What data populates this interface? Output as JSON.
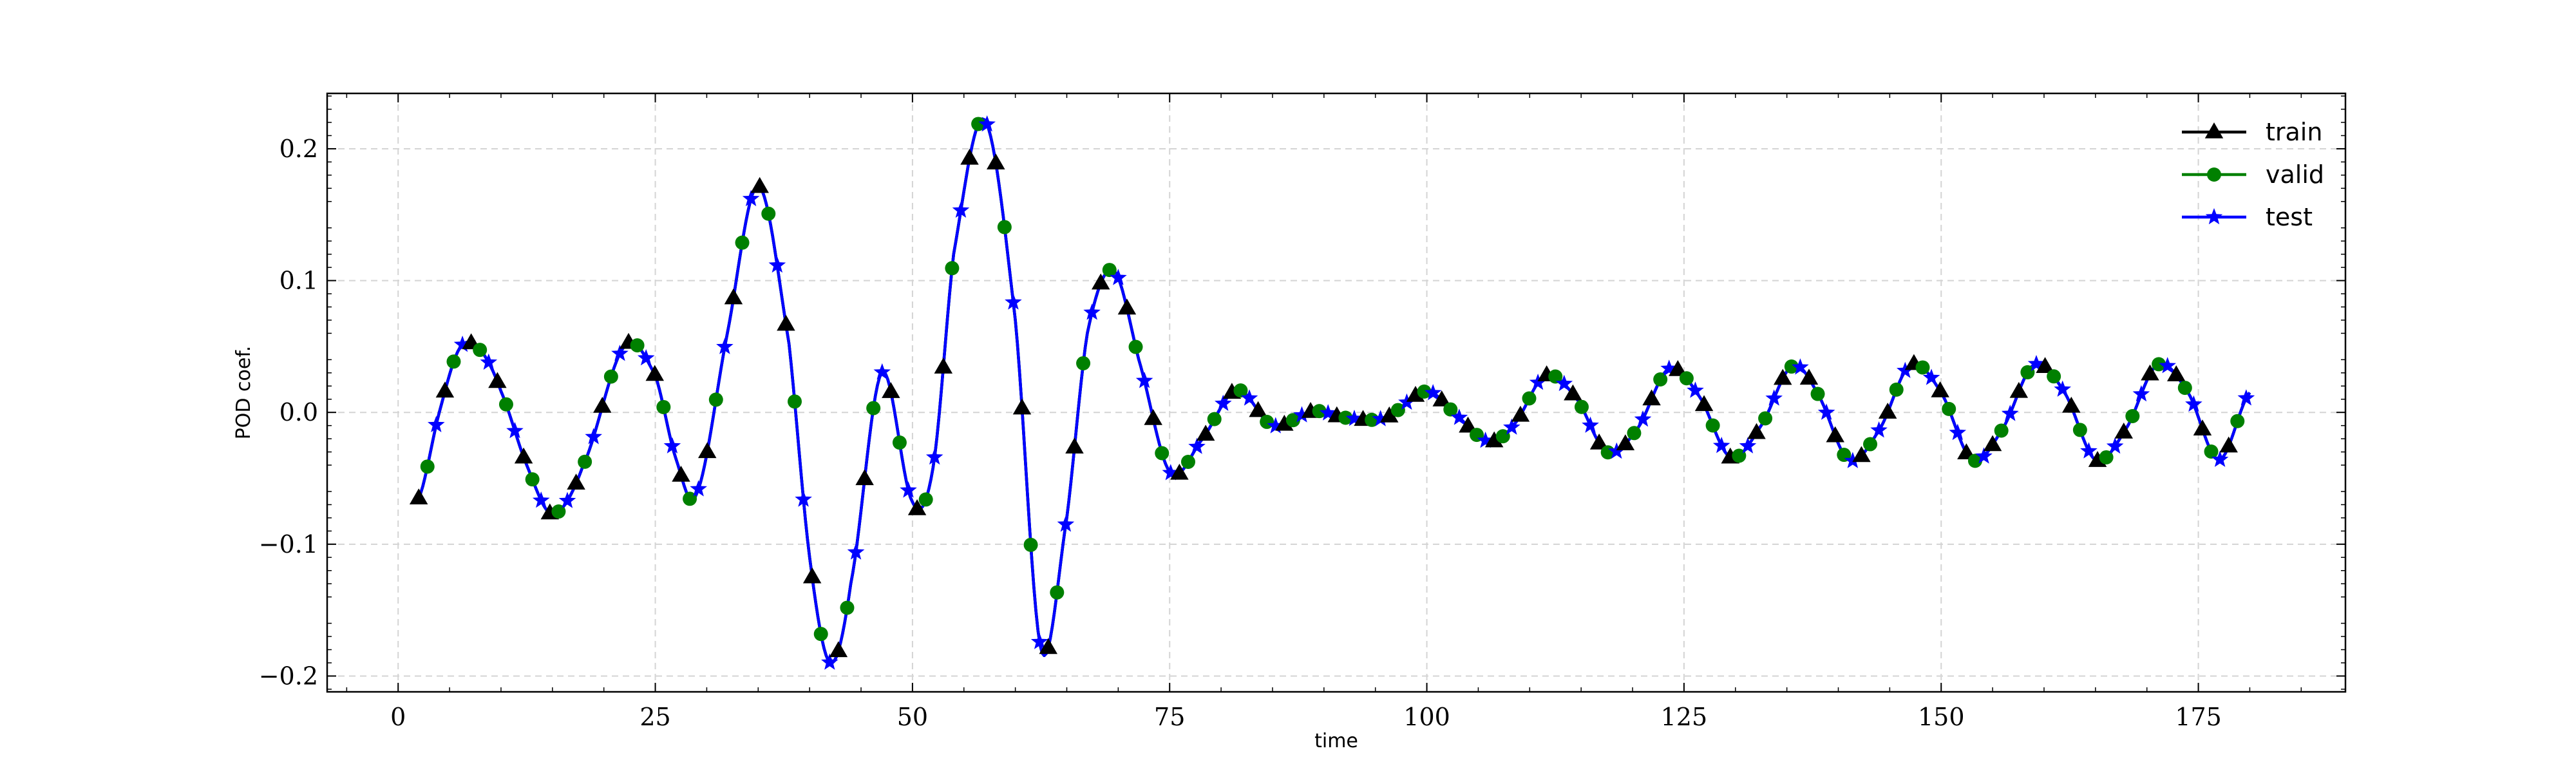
{
  "chart_data": {
    "type": "line",
    "title": "",
    "xlabel": "time",
    "ylabel": "POD coef.",
    "xlim": [
      -6.9,
      189.3
    ],
    "ylim": [
      -0.212,
      0.242
    ],
    "xticks": [
      0,
      25,
      50,
      75,
      100,
      125,
      150,
      175
    ],
    "yticks": [
      -0.2,
      -0.1,
      0.0,
      0.1,
      0.2
    ],
    "xtick_labels": [
      "0",
      "25",
      "50",
      "75",
      "100",
      "125",
      "150",
      "175"
    ],
    "ytick_labels": [
      "−0.2",
      "−0.1",
      "0.0",
      "0.1",
      "0.2"
    ],
    "grid": true,
    "legend_position": "top-right",
    "series": [
      {
        "name": "train",
        "color": "#000000",
        "marker": "triangle"
      },
      {
        "name": "valid",
        "color": "#008000",
        "marker": "circle"
      },
      {
        "name": "test",
        "color": "#0000ff",
        "marker": "star"
      }
    ],
    "curve": {
      "x": [
        2,
        4,
        6,
        8,
        10,
        12.5,
        15,
        18,
        22,
        25,
        27,
        29,
        32,
        35,
        38,
        40,
        42,
        44,
        47,
        50,
        52,
        54,
        57,
        60,
        62.5,
        65,
        67,
        69.5,
        72,
        75,
        78,
        81.5,
        85,
        89,
        92,
        96,
        100,
        103,
        106,
        108.5,
        111.5,
        114.5,
        117.5,
        120.5,
        123.5,
        126.5,
        129.5,
        132.5,
        135.5,
        138,
        141,
        144,
        147,
        150,
        153,
        156,
        159,
        162,
        165,
        168,
        171,
        174,
        177,
        180
      ],
      "y": [
        -0.065,
        0.0,
        0.049,
        0.047,
        0.016,
        -0.04,
        -0.077,
        -0.04,
        0.05,
        0.028,
        -0.035,
        -0.062,
        0.06,
        0.172,
        0.052,
        -0.11,
        -0.19,
        -0.13,
        0.03,
        -0.068,
        -0.042,
        0.12,
        0.222,
        0.07,
        -0.18,
        -0.08,
        0.06,
        0.108,
        0.04,
        -0.045,
        -0.022,
        0.017,
        -0.01,
        0.001,
        -0.004,
        -0.004,
        0.016,
        -0.003,
        -0.022,
        -0.009,
        0.028,
        0.011,
        -0.03,
        -0.012,
        0.033,
        0.012,
        -0.034,
        -0.01,
        0.035,
        0.014,
        -0.036,
        -0.013,
        0.036,
        0.015,
        -0.036,
        -0.012,
        0.036,
        0.015,
        -0.036,
        -0.012,
        0.036,
        0.015,
        -0.036,
        0.015
      ]
    }
  }
}
